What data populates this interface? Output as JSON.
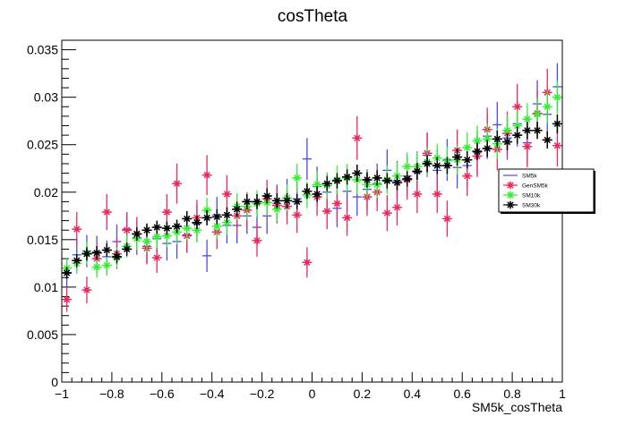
{
  "chart_data": {
    "type": "scatter",
    "title": "cosTheta",
    "xlabel": "SM5k_cosTheta",
    "ylabel": "",
    "xlim": [
      -1,
      1
    ],
    "ylim": [
      0,
      0.036
    ],
    "x_ticks": [
      -1,
      -0.8,
      -0.6,
      -0.4,
      -0.2,
      0,
      0.2,
      0.4,
      0.6,
      0.8,
      1
    ],
    "x_tick_labels": [
      "−1",
      "−0.8",
      "−0.6",
      "−0.4",
      "−0.2",
      "0",
      "0.2",
      "0.4",
      "0.6",
      "0.8",
      "1"
    ],
    "y_ticks": [
      0,
      0.005,
      0.01,
      0.015,
      0.02,
      0.025,
      0.03,
      0.035
    ],
    "y_tick_labels": [
      "0",
      "0.005",
      "0.01",
      "0.015",
      "0.02",
      "0.025",
      "0.03",
      "0.035"
    ],
    "grid": false,
    "legend_position": "right",
    "x": [
      -0.98,
      -0.94,
      -0.9,
      -0.86,
      -0.82,
      -0.78,
      -0.74,
      -0.7,
      -0.66,
      -0.62,
      -0.58,
      -0.54,
      -0.5,
      -0.46,
      -0.42,
      -0.38,
      -0.34,
      -0.3,
      -0.26,
      -0.22,
      -0.18,
      -0.14,
      -0.1,
      -0.06,
      -0.02,
      0.02,
      0.06,
      0.1,
      0.14,
      0.18,
      0.22,
      0.26,
      0.3,
      0.34,
      0.38,
      0.42,
      0.46,
      0.5,
      0.54,
      0.58,
      0.62,
      0.66,
      0.7,
      0.74,
      0.78,
      0.82,
      0.86,
      0.9,
      0.94,
      0.98
    ],
    "series": [
      {
        "name": "SM5k",
        "color": "#4a4ae8",
        "marker": "none",
        "values": [
          0.0115,
          0.0134,
          0.0138,
          0.0137,
          0.0132,
          0.0148,
          0.0161,
          0.0152,
          0.0143,
          0.0151,
          0.0146,
          0.0148,
          0.0155,
          0.0167,
          0.0133,
          0.0176,
          0.0165,
          0.0165,
          0.0175,
          0.0163,
          0.0175,
          0.0188,
          0.0194,
          0.0193,
          0.0235,
          0.0206,
          0.02,
          0.0183,
          0.0201,
          0.0195,
          0.0203,
          0.0209,
          0.0223,
          0.0212,
          0.0217,
          0.0221,
          0.0239,
          0.0223,
          0.0234,
          0.0226,
          0.0228,
          0.0242,
          0.0259,
          0.0271,
          0.0257,
          0.0272,
          0.0252,
          0.0293,
          0.0282,
          0.0311
        ],
        "errors": [
          0.0016,
          0.0017,
          0.0017,
          0.0017,
          0.0017,
          0.0018,
          0.0018,
          0.0018,
          0.0018,
          0.0018,
          0.0018,
          0.0018,
          0.0018,
          0.0019,
          0.0017,
          0.0019,
          0.0019,
          0.0019,
          0.0019,
          0.0019,
          0.0019,
          0.002,
          0.002,
          0.002,
          0.0022,
          0.0021,
          0.002,
          0.002,
          0.0021,
          0.002,
          0.0021,
          0.0021,
          0.0022,
          0.0021,
          0.0021,
          0.0022,
          0.0023,
          0.0022,
          0.0022,
          0.0022,
          0.0022,
          0.0023,
          0.0024,
          0.0024,
          0.0023,
          0.0024,
          0.0023,
          0.0025,
          0.0025,
          0.0025
        ]
      },
      {
        "name": "GenSM5k",
        "color": "#e8295e",
        "marker": "asterisk",
        "values": [
          0.0087,
          0.0161,
          0.0097,
          0.013,
          0.0179,
          0.0135,
          0.016,
          0.0156,
          0.0141,
          0.0131,
          0.0179,
          0.0209,
          0.0154,
          0.0173,
          0.0218,
          0.0158,
          0.0198,
          0.0175,
          0.0181,
          0.0149,
          0.0193,
          0.0186,
          0.0185,
          0.0176,
          0.0126,
          0.0195,
          0.018,
          0.0188,
          0.0173,
          0.0257,
          0.0195,
          0.02,
          0.0178,
          0.0184,
          0.0213,
          0.0198,
          0.0241,
          0.0198,
          0.0172,
          0.0244,
          0.0217,
          0.0238,
          0.0266,
          0.0245,
          0.0262,
          0.029,
          0.0248,
          0.0283,
          0.0305,
          0.0249
        ],
        "errors": [
          0.0013,
          0.0018,
          0.0014,
          0.0016,
          0.0019,
          0.0016,
          0.0018,
          0.0018,
          0.0017,
          0.0016,
          0.0019,
          0.0021,
          0.0018,
          0.0019,
          0.0021,
          0.0018,
          0.002,
          0.0019,
          0.0019,
          0.0017,
          0.002,
          0.0019,
          0.0019,
          0.0019,
          0.0016,
          0.002,
          0.0019,
          0.0019,
          0.0019,
          0.0023,
          0.002,
          0.002,
          0.0019,
          0.0019,
          0.0021,
          0.002,
          0.0022,
          0.002,
          0.0019,
          0.0022,
          0.0021,
          0.0022,
          0.0023,
          0.0022,
          0.0023,
          0.0024,
          0.0022,
          0.0024,
          0.0025,
          0.0022
        ]
      },
      {
        "name": "SM10k",
        "color": "#33ee33",
        "marker": "asterisk",
        "values": [
          0.012,
          0.0125,
          0.0136,
          0.0121,
          0.0123,
          0.0131,
          0.0143,
          0.0151,
          0.0148,
          0.0153,
          0.0154,
          0.0158,
          0.0162,
          0.016,
          0.0181,
          0.0164,
          0.0168,
          0.0185,
          0.0185,
          0.0188,
          0.0189,
          0.0182,
          0.0194,
          0.0215,
          0.0197,
          0.0208,
          0.0207,
          0.0213,
          0.0215,
          0.0213,
          0.0208,
          0.0208,
          0.0213,
          0.0217,
          0.0227,
          0.0227,
          0.0232,
          0.0236,
          0.0233,
          0.0234,
          0.0247,
          0.0254,
          0.0256,
          0.0251,
          0.0265,
          0.027,
          0.0277,
          0.0282,
          0.029,
          0.03
        ],
        "errors": [
          0.0011,
          0.0011,
          0.0012,
          0.0011,
          0.0011,
          0.0011,
          0.0012,
          0.0012,
          0.0012,
          0.0012,
          0.0012,
          0.0013,
          0.0013,
          0.0013,
          0.0013,
          0.0013,
          0.0013,
          0.0014,
          0.0014,
          0.0014,
          0.0014,
          0.0013,
          0.0014,
          0.0015,
          0.0014,
          0.0014,
          0.0014,
          0.0015,
          0.0015,
          0.0015,
          0.0014,
          0.0014,
          0.0015,
          0.0015,
          0.0015,
          0.0015,
          0.0015,
          0.0015,
          0.0015,
          0.0015,
          0.0016,
          0.0016,
          0.0016,
          0.0016,
          0.0016,
          0.0016,
          0.0017,
          0.0017,
          0.0017,
          0.0017
        ]
      },
      {
        "name": "SM30k",
        "color": "#000000",
        "marker": "asterisk",
        "values": [
          0.0115,
          0.0128,
          0.0135,
          0.0136,
          0.0139,
          0.0132,
          0.014,
          0.0156,
          0.016,
          0.0163,
          0.0162,
          0.0164,
          0.0172,
          0.0168,
          0.0173,
          0.0174,
          0.0176,
          0.0182,
          0.019,
          0.019,
          0.0196,
          0.0191,
          0.0191,
          0.019,
          0.0201,
          0.0198,
          0.0209,
          0.0212,
          0.0216,
          0.022,
          0.0213,
          0.0215,
          0.0212,
          0.021,
          0.0214,
          0.0222,
          0.023,
          0.0228,
          0.0228,
          0.0237,
          0.0234,
          0.0243,
          0.0246,
          0.0256,
          0.0253,
          0.026,
          0.0265,
          0.0265,
          0.0255,
          0.0272
        ],
        "errors": [
          0.0006,
          0.0007,
          0.0007,
          0.0007,
          0.0007,
          0.0007,
          0.0007,
          0.0007,
          0.0007,
          0.0007,
          0.0007,
          0.0007,
          0.0008,
          0.0007,
          0.0008,
          0.0008,
          0.0008,
          0.0008,
          0.0008,
          0.0008,
          0.0008,
          0.0008,
          0.0008,
          0.0008,
          0.0008,
          0.0008,
          0.0008,
          0.0008,
          0.0008,
          0.0009,
          0.0008,
          0.0008,
          0.0008,
          0.0008,
          0.0008,
          0.0009,
          0.0009,
          0.0009,
          0.0009,
          0.0009,
          0.0009,
          0.0009,
          0.0009,
          0.0009,
          0.0009,
          0.0009,
          0.0009,
          0.0009,
          0.0009,
          0.001
        ]
      }
    ]
  }
}
